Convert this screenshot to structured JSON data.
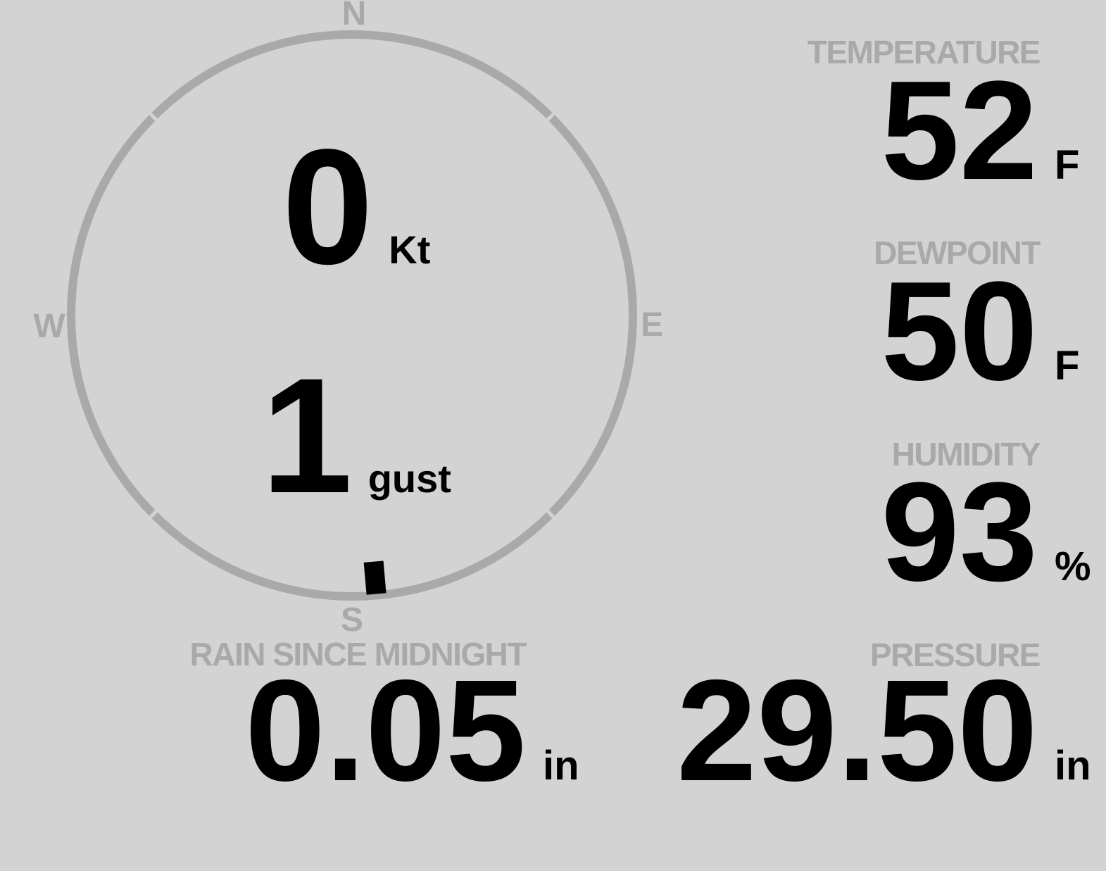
{
  "colors": {
    "background": "#d3d3d3",
    "muted": "#a9a9a9",
    "text": "#000000"
  },
  "wind": {
    "speed_value": "0",
    "speed_unit": "Kt",
    "gust_value": "1",
    "gust_unit": "gust",
    "direction_deg": 175,
    "compass": {
      "north": "N",
      "east": "E",
      "south": "S",
      "west": "W"
    }
  },
  "metrics": {
    "temperature": {
      "label": "TEMPERATURE",
      "value": "52",
      "unit": "F"
    },
    "dewpoint": {
      "label": "DEWPOINT",
      "value": "50",
      "unit": "F"
    },
    "humidity": {
      "label": "HUMIDITY",
      "value": "93",
      "unit": "%"
    },
    "pressure": {
      "label": "PRESSURE",
      "value": "29.50",
      "unit": "in"
    },
    "rain_since_midnight": {
      "label": "RAIN SINCE MIDNIGHT",
      "value": "0.05",
      "unit": "in"
    }
  }
}
